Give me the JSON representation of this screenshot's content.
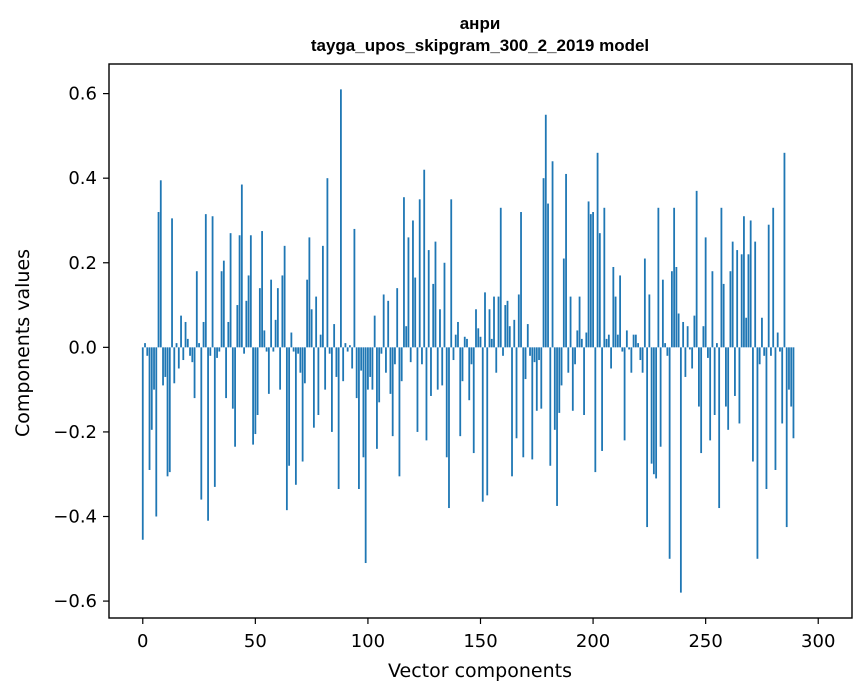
{
  "chart_data": {
    "type": "bar",
    "title": "анри",
    "subtitle": "tayga_upos_skipgram_300_2_2019 model",
    "xlabel": "Vector components",
    "ylabel": "Components values",
    "xlim": [
      -15,
      315
    ],
    "ylim": [
      -0.64,
      0.67
    ],
    "xticks": [
      0,
      50,
      100,
      150,
      200,
      250,
      300
    ],
    "xtick_labels": [
      "0",
      "50",
      "100",
      "150",
      "200",
      "250",
      "300"
    ],
    "yticks": [
      -0.6,
      -0.4,
      -0.2,
      0.0,
      0.2,
      0.4,
      0.6
    ],
    "ytick_labels": [
      "−0.6",
      "−0.4",
      "−0.2",
      "0.0",
      "0.2",
      "0.4",
      "0.6"
    ],
    "bar_color": "#1f77b4",
    "values": [
      -0.455,
      0.01,
      -0.02,
      -0.29,
      -0.195,
      -0.1,
      -0.4,
      0.32,
      0.395,
      -0.09,
      -0.07,
      -0.305,
      -0.295,
      0.305,
      -0.085,
      0.01,
      -0.05,
      0.075,
      -0.03,
      0.06,
      0.02,
      -0.02,
      -0.035,
      -0.12,
      0.18,
      0.01,
      -0.36,
      0.06,
      0.315,
      -0.41,
      -0.02,
      0.31,
      -0.33,
      -0.025,
      -0.01,
      0.18,
      0.205,
      -0.12,
      0.06,
      0.27,
      -0.145,
      -0.235,
      0.1,
      0.265,
      0.385,
      -0.015,
      0.11,
      0.17,
      0.265,
      -0.23,
      -0.205,
      -0.16,
      0.14,
      0.275,
      0.04,
      -0.01,
      -0.11,
      0.16,
      -0.01,
      0.065,
      0.14,
      -0.1,
      0.17,
      0.24,
      -0.385,
      -0.28,
      0.035,
      -0.01,
      -0.325,
      -0.015,
      -0.06,
      -0.27,
      -0.085,
      0.16,
      0.26,
      0.09,
      -0.19,
      0.12,
      -0.16,
      0.03,
      0.24,
      -0.1,
      0.4,
      -0.015,
      -0.2,
      0.055,
      -0.07,
      -0.335,
      0.61,
      -0.08,
      0.01,
      -0.01,
      0.005,
      -0.05,
      0.28,
      -0.12,
      -0.335,
      -0.055,
      -0.26,
      -0.51,
      -0.1,
      -0.07,
      -0.1,
      0.075,
      -0.24,
      -0.13,
      -0.015,
      0.125,
      -0.06,
      0.11,
      -0.11,
      -0.21,
      -0.04,
      0.14,
      -0.305,
      -0.08,
      0.355,
      0.05,
      0.26,
      -0.035,
      0.3,
      0.165,
      -0.2,
      0.35,
      -0.04,
      0.42,
      -0.22,
      0.23,
      -0.115,
      0.15,
      0.25,
      -0.1,
      0.09,
      -0.09,
      0.2,
      -0.26,
      -0.38,
      0.35,
      -0.03,
      0.03,
      0.06,
      -0.21,
      -0.08,
      0.025,
      0.02,
      -0.125,
      -0.04,
      -0.25,
      0.09,
      0.045,
      0.025,
      -0.365,
      0.13,
      -0.35,
      0.09,
      0.02,
      0.12,
      -0.06,
      0.12,
      0.33,
      -0.02,
      0.1,
      0.11,
      0.05,
      -0.305,
      0.065,
      -0.215,
      0.125,
      0.32,
      -0.26,
      -0.075,
      0.055,
      -0.02,
      -0.265,
      -0.035,
      -0.15,
      -0.03,
      -0.145,
      0.4,
      0.55,
      0.34,
      -0.28,
      0.44,
      -0.195,
      -0.375,
      -0.155,
      -0.09,
      0.21,
      0.41,
      -0.06,
      0.12,
      -0.15,
      -0.04,
      0.04,
      0.12,
      0.02,
      -0.16,
      0.035,
      0.345,
      0.315,
      0.32,
      -0.295,
      0.46,
      0.27,
      -0.245,
      0.33,
      0.02,
      0.03,
      -0.05,
      0.19,
      0.12,
      0.03,
      0.17,
      -0.01,
      -0.22,
      0.04,
      -0.005,
      -0.06,
      0.03,
      0.03,
      0.01,
      -0.03,
      -0.06,
      0.21,
      -0.425,
      0.125,
      -0.275,
      -0.3,
      -0.31,
      0.33,
      -0.235,
      0.16,
      0.01,
      -0.02,
      -0.5,
      0.18,
      0.33,
      0.19,
      0.08,
      -0.58,
      0.06,
      -0.07,
      0.05,
      -0.005,
      -0.05,
      0.075,
      0.37,
      -0.14,
      -0.25,
      0.05,
      0.26,
      -0.025,
      -0.22,
      0.18,
      -0.16,
      0.01,
      -0.38,
      0.33,
      0.15,
      -0.14,
      -0.195,
      0.18,
      0.25,
      -0.115,
      0.23,
      -0.18,
      0.22,
      0.31,
      0.07,
      0.22,
      0.3,
      -0.27,
      0.25,
      -0.5,
      -0.04,
      0.07,
      -0.02,
      -0.335,
      0.29,
      -0.02,
      0.33,
      -0.29,
      0.035,
      -0.01,
      -0.18,
      0.46,
      -0.425,
      -0.1,
      -0.14,
      -0.215
    ]
  }
}
